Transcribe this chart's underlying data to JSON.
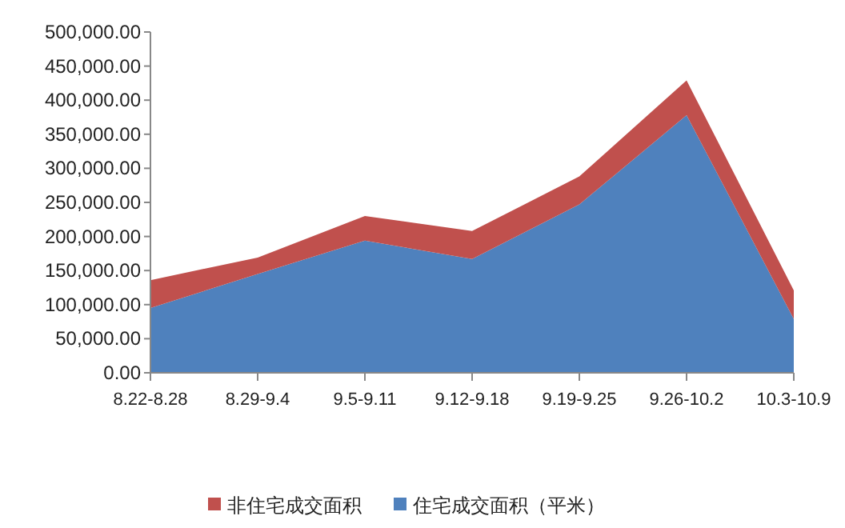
{
  "chart_data": {
    "type": "area",
    "stacked": true,
    "legend": "bottom",
    "categories": [
      "8.22-8.28",
      "8.29-9.4",
      "9.5-9.11",
      "9.12-9.18",
      "9.19-9.25",
      "9.26-10.2",
      "10.3-10.9"
    ],
    "series": [
      {
        "name": "住宅成交面积（平米）",
        "color": "#4f81bd",
        "values": [
          95000,
          145000,
          194000,
          167000,
          247000,
          378000,
          79000
        ]
      },
      {
        "name": "非住宅成交面积",
        "color": "#c0504d",
        "values": [
          41000,
          24000,
          36000,
          41000,
          41000,
          51000,
          42000
        ]
      }
    ],
    "ylim": [
      0,
      500000
    ],
    "yticks": [
      {
        "value": 0,
        "label": "0.00"
      },
      {
        "value": 50000,
        "label": "50,000.00"
      },
      {
        "value": 100000,
        "label": "100,000.00"
      },
      {
        "value": 150000,
        "label": "150,000.00"
      },
      {
        "value": 200000,
        "label": "200,000.00"
      },
      {
        "value": 250000,
        "label": "250,000.00"
      },
      {
        "value": 300000,
        "label": "300,000.00"
      },
      {
        "value": 350000,
        "label": "350,000.00"
      },
      {
        "value": 400000,
        "label": "400,000.00"
      },
      {
        "value": 450000,
        "label": "450,000.00"
      },
      {
        "value": 500000,
        "label": "500,000.00"
      }
    ]
  }
}
